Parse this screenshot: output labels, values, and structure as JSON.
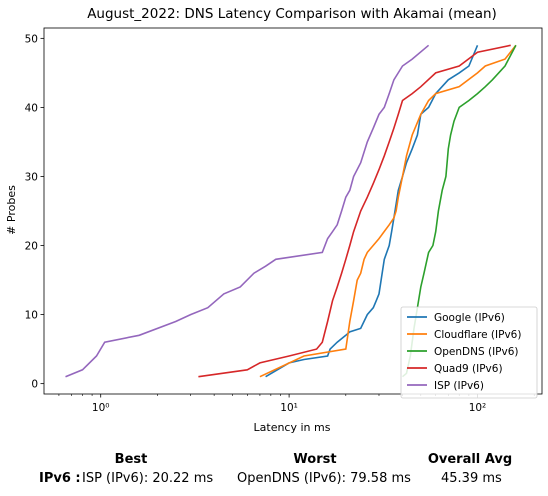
{
  "chart_data": {
    "type": "line",
    "title": "August_2022: DNS Latency Comparison with Akamai (mean)",
    "xlabel": "Latency in ms",
    "ylabel": "# Probes",
    "xscale": "log",
    "xlim": [
      0.5,
      220
    ],
    "ylim": [
      -1.5,
      51.5
    ],
    "xticks": [
      {
        "value": 1,
        "label": "10⁰"
      },
      {
        "value": 10,
        "label": "10¹"
      },
      {
        "value": 100,
        "label": "10²"
      }
    ],
    "yticks": [
      0,
      10,
      20,
      30,
      40,
      50
    ],
    "grid": false,
    "legend_position": "lower-right",
    "series": [
      {
        "name": "Google (IPv6)",
        "color": "#1f77b4",
        "x": [
          7.5,
          10,
          12,
          16,
          16.5,
          18,
          20,
          21,
          24,
          26,
          28,
          29,
          30,
          32,
          34,
          35,
          36,
          37,
          38,
          40,
          42,
          45,
          48,
          50,
          55,
          60,
          70,
          80,
          90,
          100
        ],
        "y": [
          1,
          3,
          3.5,
          4,
          5,
          6,
          7,
          7.5,
          8,
          10,
          11,
          12,
          13,
          18,
          20,
          22,
          24,
          26,
          28,
          30,
          32,
          34,
          36,
          39,
          40,
          42,
          44,
          45,
          46,
          49
        ]
      },
      {
        "name": "Cloudflare (IPv6)",
        "color": "#ff7f0e",
        "x": [
          7,
          12,
          20,
          21,
          22,
          23,
          24,
          25,
          26,
          30,
          34,
          36,
          37,
          38,
          40,
          42,
          45,
          50,
          55,
          60,
          80,
          100,
          110,
          140,
          160
        ],
        "y": [
          1,
          4,
          5,
          9,
          12,
          15,
          16,
          18,
          19,
          21,
          23,
          24,
          25,
          27,
          30,
          33,
          36,
          39,
          41,
          42,
          43,
          45,
          46,
          47,
          49
        ]
      },
      {
        "name": "OpenDNS (IPv6)",
        "color": "#2ca02c",
        "x": [
          40,
          42,
          44,
          46,
          48,
          50,
          52,
          55,
          58,
          60,
          62,
          65,
          68,
          70,
          72,
          75,
          80,
          90,
          100,
          110,
          120,
          140,
          160
        ],
        "y": [
          1,
          1.5,
          4,
          8,
          11,
          14,
          16,
          19,
          20,
          22,
          25,
          28,
          30,
          34,
          36,
          38,
          40,
          41,
          42,
          43,
          44,
          46,
          49
        ]
      },
      {
        "name": "Quad9 (IPv6)",
        "color": "#d62728",
        "x": [
          3.3,
          6,
          7,
          10,
          14,
          15,
          16,
          17,
          18,
          19,
          20,
          21,
          22,
          24,
          26,
          28,
          30,
          32,
          34,
          36,
          38,
          40,
          45,
          50,
          60,
          80,
          100,
          150
        ],
        "y": [
          1,
          2,
          3,
          4,
          5,
          6,
          9,
          12,
          14,
          16,
          18,
          20,
          22,
          25,
          27,
          29,
          31,
          33,
          35,
          37,
          39,
          41,
          42,
          43,
          45,
          46,
          48,
          49
        ]
      },
      {
        "name": "ISP (IPv6)",
        "color": "#9467bd",
        "x": [
          0.65,
          0.8,
          0.95,
          1.05,
          1.6,
          2.5,
          3.0,
          3.7,
          4.5,
          5.5,
          6.5,
          7.5,
          8.5,
          15,
          16,
          17,
          18,
          19,
          20,
          21,
          22,
          24,
          26,
          28,
          30,
          32,
          34,
          36,
          40,
          45,
          55
        ],
        "y": [
          1,
          2,
          4,
          6,
          7,
          9,
          10,
          11,
          13,
          14,
          16,
          17,
          18,
          19,
          21,
          22,
          23,
          25,
          27,
          28,
          30,
          32,
          35,
          37,
          39,
          40,
          42,
          44,
          46,
          47,
          49
        ]
      }
    ]
  },
  "summary": {
    "best_label": "Best",
    "worst_label": "Worst",
    "avg_label": "Overall Avg",
    "row_label": "IPv6 :",
    "best_value": "ISP (IPv6): 20.22 ms",
    "worst_value": "OpenDNS (IPv6): 79.58 ms",
    "avg_value": "45.39 ms"
  }
}
